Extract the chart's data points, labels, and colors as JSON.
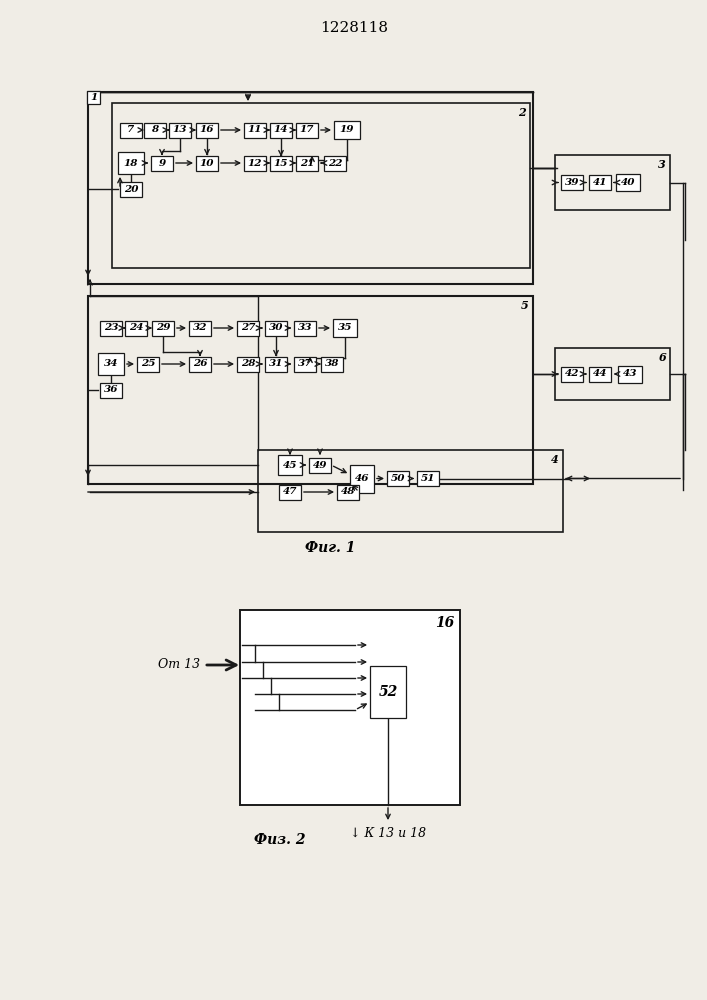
{
  "title": "1228118",
  "fig1_label": "Фиг. 1",
  "fig2_label": "Физ. 2",
  "from13_label": "От 13",
  "to1318_label": "↓ К 13 и 18",
  "bg_color": "#f0ede6",
  "box_color": "#ffffff",
  "line_color": "#1a1a1a"
}
